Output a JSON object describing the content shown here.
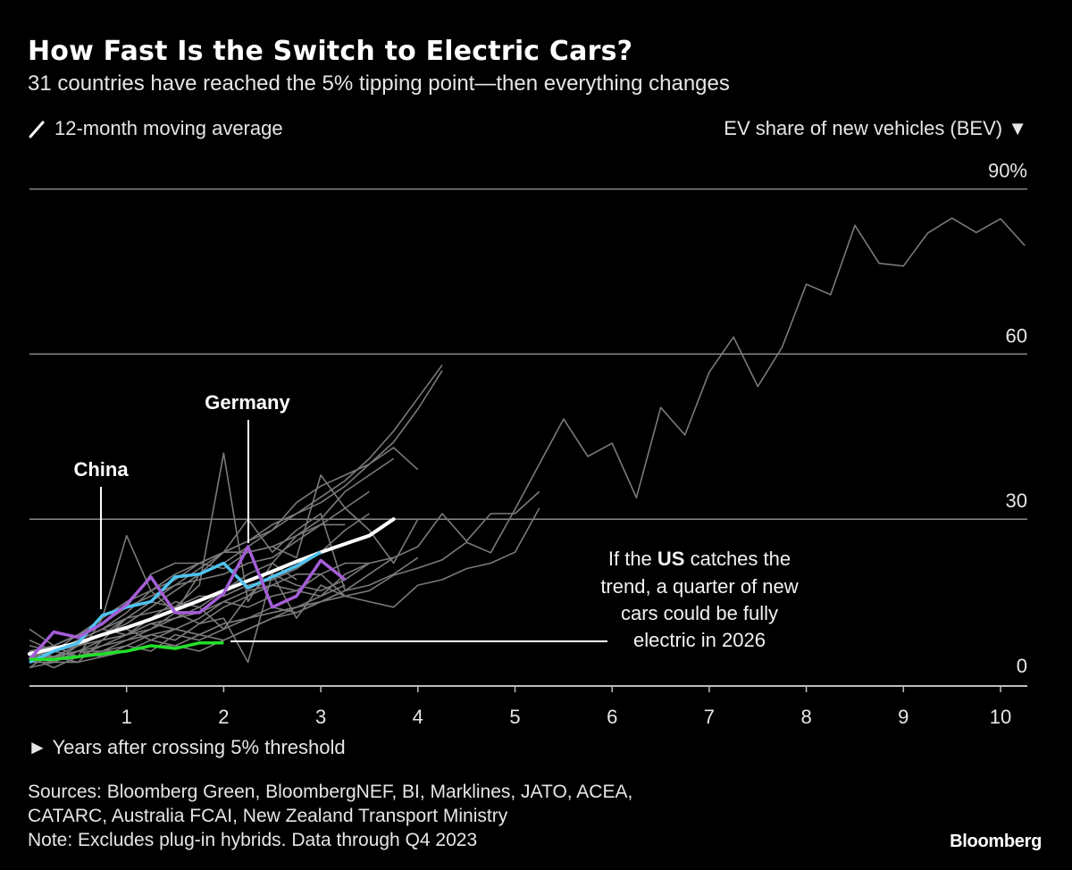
{
  "header": {
    "title": "How Fast Is the Switch to Electric Cars?",
    "subtitle": "31 countries have reached the 5% tipping point—then everything changes"
  },
  "legend": {
    "icon": "slash-line-icon",
    "label": "12-month moving average"
  },
  "footer": {
    "sources": [
      "Sources: Bloomberg Green, BloombergNEF, BI, Marklines, JATO, ACEA,",
      "CATARC, Australia FCAI, New Zealand Transport Ministry",
      "Note: Excludes plug-in hybrids. Data through Q4 2023"
    ],
    "logo": "Bloomberg"
  },
  "chart_data": {
    "type": "line",
    "title": "How Fast Is the Switch to Electric Cars?",
    "ylabel": "EV share of new vehicles (BEV) ▼",
    "xlabel": "► Years after crossing 5% threshold",
    "xlim": [
      0,
      10.25
    ],
    "ylim": [
      0,
      90
    ],
    "x_ticks": [
      1,
      2,
      3,
      4,
      5,
      6,
      7,
      8,
      9,
      10
    ],
    "x_tick_labels": [
      "1",
      "2",
      "3",
      "4",
      "5",
      "6",
      "7",
      "8",
      "9",
      "10"
    ],
    "y_ticks": [
      0,
      30,
      60,
      90
    ],
    "y_tick_labels": [
      "0",
      "30",
      "60",
      "90%"
    ],
    "grid": "horizontal",
    "colors": {
      "gray": "#7a7a7a",
      "average": "#ffffff",
      "china": "#4fc3f0",
      "germany": "#a45ed6",
      "us": "#22e02a"
    },
    "highlighted": [
      {
        "name": "China",
        "color": "#4fc3f0",
        "values": [
          4,
          6,
          7.5,
          12.5,
          14,
          15,
          19.5,
          20,
          22,
          17.5,
          19.5,
          21.5,
          24
        ]
      },
      {
        "name": "Germany",
        "color": "#a45ed6",
        "values": [
          4.5,
          9.5,
          8.5,
          11,
          14.5,
          19.5,
          13,
          13,
          16.5,
          25,
          14,
          16,
          22.5,
          19
        ]
      },
      {
        "name": "US",
        "color": "#22e02a",
        "values": [
          4.5,
          4.5,
          5,
          5.5,
          6,
          7,
          6.5,
          7.5,
          7.5
        ]
      }
    ],
    "average": {
      "label": "12-month moving average",
      "color": "#ffffff",
      "values": [
        5.5,
        6.5,
        7.5,
        9,
        10.3,
        11.8,
        13.5,
        15.2,
        17,
        18.8,
        20.5,
        22.3,
        24,
        25.5,
        27,
        30
      ]
    },
    "other_countries": [
      {
        "values": [
          5,
          4,
          6,
          7,
          8,
          9,
          10,
          9,
          11,
          12,
          13,
          14,
          15,
          16,
          17,
          19.8,
          21.1,
          22.6,
          25.8,
          23.9,
          31.8,
          40,
          48.2,
          41.4,
          43.8,
          33.9,
          50.3,
          45.3,
          56.7,
          63.1,
          54.1,
          61.2,
          72.7,
          70.8,
          83.4,
          76.5,
          76,
          82,
          84.7,
          82.1,
          84.6,
          79.7
        ]
      },
      {
        "values": [
          5,
          6,
          7,
          9,
          11,
          14,
          17,
          20,
          22,
          25,
          28,
          31,
          34,
          37,
          41,
          46,
          52,
          58
        ]
      },
      {
        "values": [
          4,
          5,
          7,
          9,
          12,
          15,
          18,
          21,
          24,
          26,
          29,
          31,
          33,
          36,
          40,
          44,
          50,
          57
        ]
      },
      {
        "values": [
          3,
          6,
          8,
          10,
          13,
          17,
          20,
          22,
          24,
          26,
          28,
          33,
          36,
          38,
          40,
          43,
          39
        ]
      },
      {
        "values": [
          6,
          5,
          4,
          8,
          12,
          15,
          14,
          18,
          42,
          15,
          22,
          27,
          30,
          35,
          38,
          41
        ]
      },
      {
        "values": [
          10,
          7,
          5,
          12,
          27,
          17,
          13,
          20,
          24,
          30,
          24,
          28,
          31,
          17,
          20,
          23,
          25,
          31,
          26,
          31,
          31,
          35
        ]
      },
      {
        "values": [
          8,
          6,
          9,
          11,
          14,
          20,
          22,
          22,
          21,
          24,
          25,
          23,
          38,
          32,
          28,
          22,
          30
        ]
      },
      {
        "values": [
          4,
          5,
          6,
          6,
          8,
          10,
          12,
          14,
          10,
          16,
          20,
          12,
          18,
          16,
          15,
          14,
          18,
          19,
          21,
          22,
          24,
          32
        ]
      },
      {
        "values": [
          6,
          4,
          7,
          8,
          9,
          10,
          13,
          11,
          14,
          16,
          18,
          20,
          20,
          22,
          22
        ]
      },
      {
        "values": [
          5,
          3,
          5,
          6,
          7,
          9,
          8,
          11,
          12,
          4,
          20,
          18,
          17,
          19,
          22,
          23
        ]
      },
      {
        "values": [
          7,
          6,
          8,
          10,
          12,
          13,
          14,
          16,
          16,
          18,
          19,
          21,
          24,
          28,
          31
        ]
      },
      {
        "values": [
          5,
          6,
          5,
          7,
          9,
          11,
          12,
          13,
          15,
          14,
          16,
          17,
          20,
          16
        ]
      },
      {
        "values": [
          4,
          4,
          6,
          5,
          7,
          6,
          9,
          8,
          10,
          12,
          13,
          14,
          15,
          17,
          18,
          20,
          23
        ]
      },
      {
        "values": [
          6,
          7,
          9,
          12,
          15,
          17,
          19,
          22,
          24,
          24,
          25,
          27,
          29,
          29
        ]
      },
      {
        "values": [
          3,
          4,
          4,
          5,
          6,
          7,
          7,
          6,
          8,
          10,
          12,
          14,
          16,
          18
        ]
      },
      {
        "values": [
          5,
          5,
          6,
          8,
          9,
          12,
          15,
          14,
          17,
          20,
          22,
          19
        ]
      },
      {
        "values": [
          4,
          6,
          8,
          10,
          9,
          11,
          10,
          12,
          15,
          17,
          18,
          17,
          16,
          20,
          22
        ]
      },
      {
        "values": [
          6,
          5,
          7,
          9,
          10,
          8,
          7,
          9,
          11,
          12,
          14,
          13,
          15,
          17
        ]
      },
      {
        "values": [
          4,
          5,
          5,
          6,
          6,
          8,
          10,
          9,
          8,
          10,
          12,
          13,
          15
        ]
      },
      {
        "values": [
          5,
          7,
          9,
          11,
          14,
          16,
          18,
          19,
          20,
          22,
          23,
          26,
          29,
          32,
          35
        ]
      }
    ],
    "labels": [
      {
        "text": "China",
        "x": 0.75
      },
      {
        "text": "Germany",
        "x": 2.25
      }
    ],
    "annotation": {
      "lines": [
        "If the ",
        "US",
        " catches the",
        "trend, a quarter of new",
        "cars could be fully",
        "electric in 2026"
      ]
    }
  }
}
